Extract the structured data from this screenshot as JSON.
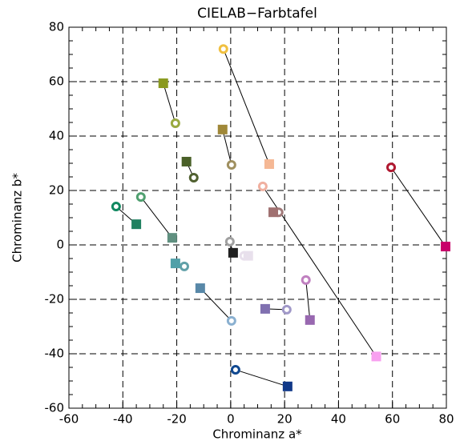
{
  "chart_data": {
    "type": "scatter",
    "title": "CIELAB−Farbtafel",
    "x_label": "Chrominanz a*",
    "y_label": "Chrominanz b*",
    "xlim": [
      -60,
      80
    ],
    "ylim": [
      -60,
      80
    ],
    "xticks": [
      -60,
      -40,
      -20,
      0,
      20,
      40,
      60,
      80
    ],
    "yticks": [
      -60,
      -40,
      -20,
      0,
      20,
      40,
      60,
      80
    ],
    "grid": true,
    "series": [
      {
        "marker": "circle",
        "x": [
          -2.7,
          -20.5,
          0.3,
          -13.7,
          59.5,
          11.9,
          17.8,
          -42.5,
          -33.3,
          -0.3,
          5,
          -17.2,
          0.3,
          20.8,
          27.9,
          1.8
        ],
        "values": [
          72,
          44.7,
          29.4,
          24.7,
          28.5,
          21.5,
          12,
          14.1,
          17.6,
          1.2,
          -4,
          -7.9,
          -27.9,
          -23.8,
          -12.9,
          -45.9
        ],
        "colors": [
          "#f0c040",
          "#9aaa40",
          "#a09060",
          "#506030",
          "#b01830",
          "#f0b0a0",
          "#a07878",
          "#108860",
          "#50a070",
          "#a0a0a0",
          "#e8e0ec",
          "#60a0a8",
          "#8ab0d0",
          "#a098c8",
          "#c080c0",
          "#104890"
        ]
      },
      {
        "marker": "square",
        "x": [
          14.3,
          -25,
          -3,
          -16.4,
          79.7,
          54,
          15.8,
          -35,
          -21.7,
          0.9,
          6.5,
          -20.5,
          -11.3,
          12.8,
          29.4,
          21.1
        ],
        "values": [
          29.7,
          59.4,
          42.4,
          30.6,
          -0.6,
          -41,
          12,
          7.6,
          2.6,
          -2.9,
          -4,
          -6.8,
          -15.9,
          -23.5,
          -27.6,
          -52
        ],
        "colors": [
          "#f5b895",
          "#8a9a20",
          "#a08838",
          "#4a6028",
          "#c8006a",
          "#f8a0f0",
          "#a07070",
          "#208060",
          "#609080",
          "#202020",
          "#e8e0ec",
          "#50a0a8",
          "#5888a8",
          "#8070b0",
          "#9868b0",
          "#103888"
        ]
      }
    ]
  }
}
